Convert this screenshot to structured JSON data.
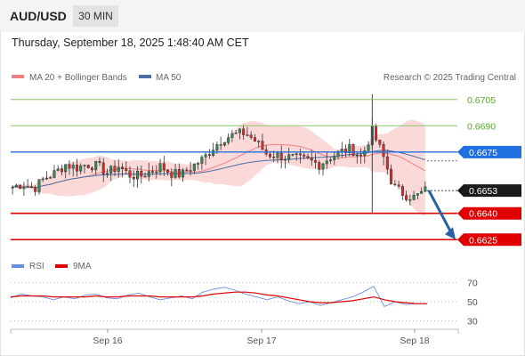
{
  "header": {
    "pair": "AUD/USD",
    "timeframe": "30 MIN",
    "datetime": "Thursday, September 18, 2025 1:48:40 AM CET"
  },
  "legend": {
    "ma20_label": "MA 20 + Bollinger Bands",
    "ma50_label": "MA 50",
    "credit": "Research © 2025 Trading Central"
  },
  "rsi_legend": {
    "rsi_label": "RSI",
    "ma_label": "9MA"
  },
  "colors": {
    "ma20": "#f08080",
    "bollinger_fill": "#fbd9d9",
    "ma50": "#4a6fa5",
    "candle_up": "#2e8b57",
    "candle_down": "#d43030",
    "resistance": "#8cc36a",
    "pivot": "#1f6fe0",
    "support": "#e00000",
    "current_price": "#1a1a1a",
    "forecast_arrow": "#2a5fa8",
    "rsi": "#6b8fe0",
    "rsi_ma": "#e00000"
  },
  "chart_data": [
    {
      "type": "candlestick",
      "title": "AUD/USD 30 MIN",
      "x_ticks": [
        "Sep 16",
        "Sep 17",
        "Sep 18"
      ],
      "ylim": [
        0.6617,
        0.6712
      ],
      "levels": [
        {
          "label": "0.6705",
          "value": 0.6705,
          "kind": "resistance"
        },
        {
          "label": "0.6690",
          "value": 0.669,
          "kind": "resistance"
        },
        {
          "label": "0.6675",
          "value": 0.6675,
          "kind": "pivot"
        },
        {
          "label": "0.6653",
          "value": 0.6653,
          "kind": "current"
        },
        {
          "label": "0.6640",
          "value": 0.664,
          "kind": "support"
        },
        {
          "label": "0.6625",
          "value": 0.6625,
          "kind": "support"
        }
      ],
      "current_price": 0.6653,
      "forecast_target": 0.6625,
      "price_path": [
        0.6655,
        0.6657,
        0.6654,
        0.666,
        0.6663,
        0.6668,
        0.6666,
        0.6668,
        0.6667,
        0.6663,
        0.6667,
        0.6662,
        0.6661,
        0.6664,
        0.6667,
        0.6663,
        0.6662,
        0.6667,
        0.6671,
        0.6678,
        0.6683,
        0.6685,
        0.6686,
        0.6681,
        0.6674,
        0.6673,
        0.6672,
        0.6671,
        0.667,
        0.6668,
        0.6672,
        0.6675,
        0.6677,
        0.6672,
        0.6687,
        0.6673,
        0.6655,
        0.6651,
        0.6649,
        0.6653
      ],
      "series": [
        {
          "name": "MA 20 + Bollinger Bands"
        },
        {
          "name": "MA 50"
        }
      ]
    },
    {
      "type": "line",
      "x_ticks": [
        "Sep 16",
        "Sep 17",
        "Sep 18"
      ],
      "ylim": [
        25,
        75
      ],
      "y_ticks": [
        70,
        50,
        30
      ],
      "series": [
        {
          "name": "RSI",
          "values": [
            54,
            58,
            56,
            55,
            52,
            55,
            53,
            57,
            58,
            54,
            53,
            57,
            59,
            55,
            52,
            54,
            56,
            53,
            60,
            63,
            65,
            62,
            58,
            55,
            52,
            55,
            51,
            48,
            50,
            46,
            49,
            52,
            55,
            60,
            66,
            45,
            50,
            47,
            48,
            48
          ]
        },
        {
          "name": "9MA",
          "values": [
            55,
            56,
            56,
            56,
            55,
            55,
            55,
            55,
            56,
            55,
            55,
            56,
            56,
            56,
            55,
            55,
            55,
            55,
            56,
            58,
            59,
            60,
            60,
            59,
            57,
            56,
            54,
            52,
            50,
            49,
            49,
            50,
            51,
            53,
            55,
            52,
            50,
            49,
            48,
            48
          ]
        }
      ]
    }
  ]
}
